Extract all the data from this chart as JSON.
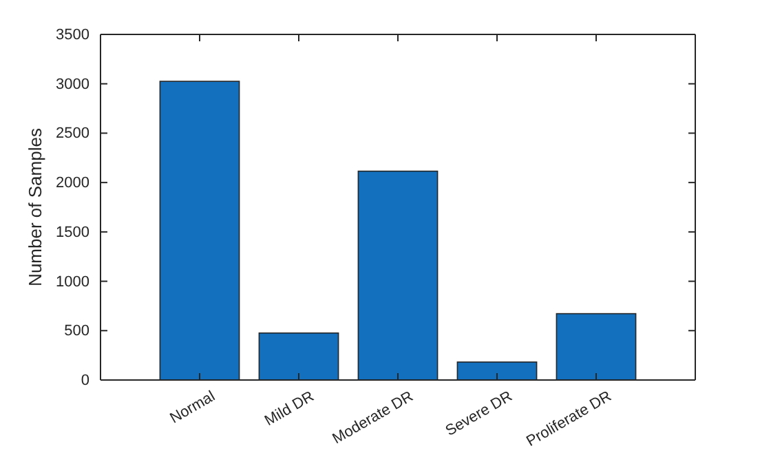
{
  "chart_data": {
    "type": "bar",
    "ylabel": "Number of Samples",
    "categories": [
      "Normal",
      "Mild DR",
      "Moderate DR",
      "Severe DR",
      "Proliferate DR"
    ],
    "values": [
      3025,
      476,
      2115,
      182,
      672
    ],
    "color": "#1270bf",
    "ylim": [
      0,
      3500
    ],
    "yticks": [
      0,
      500,
      1000,
      1500,
      2000,
      2500,
      3000,
      3500
    ],
    "grid": false
  }
}
